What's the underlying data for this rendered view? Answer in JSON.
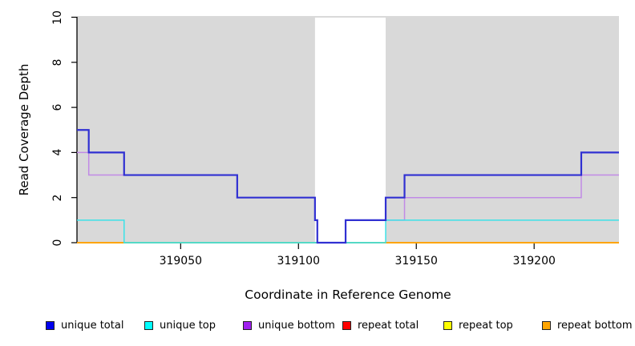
{
  "figure": {
    "background_color": "#FFFFFF",
    "plot_background_color": "#D9D9D9",
    "axis_color": "#000000"
  },
  "chart_data": {
    "type": "line",
    "title": "",
    "xlabel": "Coordinate in Reference Genome",
    "ylabel": "Read Coverage Depth",
    "x_domain": [
      319006,
      319236
    ],
    "y_domain": [
      0,
      10
    ],
    "grid": "off",
    "legend_position": "bottom",
    "x_ticks": [
      {
        "value": 319050,
        "label": "319050"
      },
      {
        "value": 319100,
        "label": "319100"
      },
      {
        "value": 319150,
        "label": "319150"
      },
      {
        "value": 319200,
        "label": "319200"
      }
    ],
    "y_ticks": [
      {
        "value": 0,
        "label": "0"
      },
      {
        "value": 2,
        "label": "2"
      },
      {
        "value": 4,
        "label": "4"
      },
      {
        "value": 6,
        "label": "6"
      },
      {
        "value": 8,
        "label": "8"
      },
      {
        "value": 10,
        "label": "10"
      }
    ],
    "masked_region": {
      "from": 319107,
      "to": 319137,
      "color": "#FFFFFF"
    },
    "series": [
      {
        "name": "repeat total",
        "color": "#EE0000",
        "width": 1.6,
        "steps": [
          [
            319006,
            0
          ]
        ],
        "end": 319236
      },
      {
        "name": "repeat top",
        "color": "#FFFF00",
        "width": 1.6,
        "steps": [
          [
            319006,
            0
          ]
        ],
        "end": 319236
      },
      {
        "name": "repeat bottom",
        "color": "#FFA500",
        "width": 1.8,
        "steps": [
          [
            319006,
            0
          ]
        ],
        "end": 319236
      },
      {
        "name": "unique bottom",
        "color": "#C18AE6",
        "width": 1.5,
        "steps": [
          [
            319006,
            4
          ],
          [
            319011,
            3
          ],
          [
            319074,
            2
          ],
          [
            319107,
            1
          ],
          [
            319108,
            0
          ],
          [
            319120,
            1
          ],
          [
            319145,
            2
          ],
          [
            319220,
            3
          ]
        ],
        "end": 319236
      },
      {
        "name": "unique top",
        "color": "#3CE2E8",
        "width": 1.5,
        "steps": [
          [
            319006,
            1
          ],
          [
            319026,
            0
          ],
          [
            319137,
            1
          ]
        ],
        "end": 319236
      },
      {
        "name": "unique total",
        "color": "#3030D2",
        "width": 2.2,
        "steps": [
          [
            319006,
            5
          ],
          [
            319011,
            4
          ],
          [
            319026,
            3
          ],
          [
            319074,
            2
          ],
          [
            319107,
            1
          ],
          [
            319108,
            0
          ],
          [
            319120,
            1
          ],
          [
            319137,
            2
          ],
          [
            319145,
            3
          ],
          [
            319220,
            4
          ]
        ],
        "end": 319236
      }
    ],
    "zero_line_segments": [
      {
        "from": 319006,
        "to": 319026,
        "color": "#FFA500"
      },
      {
        "from": 319026,
        "to": 319136,
        "color": "#7CC87C"
      },
      {
        "from": 319136,
        "to": 319236,
        "color": "#FFA500"
      }
    ]
  },
  "legend": {
    "items": [
      {
        "label": "unique total",
        "color": "#0000EE"
      },
      {
        "label": "unique top",
        "color": "#00FFFF"
      },
      {
        "label": "unique bottom",
        "color": "#A020F0"
      },
      {
        "label": "repeat total",
        "color": "#FF0000"
      },
      {
        "label": "repeat top",
        "color": "#FFFF00"
      },
      {
        "label": "repeat bottom",
        "color": "#FFA500"
      }
    ]
  }
}
